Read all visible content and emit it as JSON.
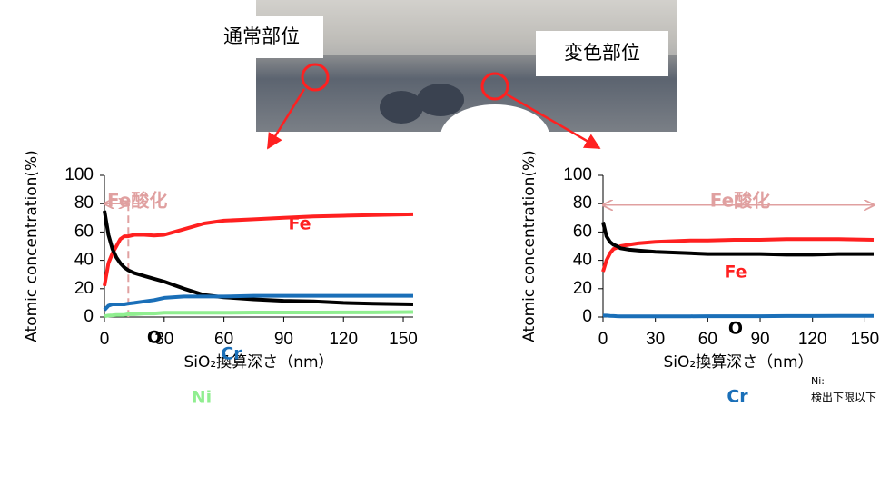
{
  "photo": {
    "labels": [
      "通常部位",
      "変色部位"
    ]
  },
  "chart_data": [
    {
      "type": "line",
      "x_label": "SiO₂換算深さ（nm）",
      "y_label": "Atomic concentration(%)",
      "xlim": [
        0,
        155
      ],
      "ylim": [
        0,
        100
      ],
      "xticks": [
        0,
        30,
        60,
        90,
        120,
        150
      ],
      "yticks": [
        0,
        20,
        40,
        60,
        80,
        100
      ],
      "x": [
        0,
        2,
        4,
        6,
        8,
        10,
        12,
        15,
        20,
        25,
        30,
        40,
        50,
        60,
        75,
        90,
        105,
        120,
        135,
        155
      ],
      "series": [
        {
          "name": "Fe",
          "color": "#ff2020",
          "values": [
            22,
            38,
            45,
            50,
            55,
            57,
            57,
            58,
            58,
            57.5,
            58,
            62,
            66,
            68,
            69,
            70,
            71,
            71.5,
            72,
            72.5
          ]
        },
        {
          "name": "O",
          "color": "#000000",
          "values": [
            75,
            58,
            48,
            42,
            38,
            35,
            33,
            31,
            29,
            27,
            25,
            20,
            15.5,
            14,
            12.5,
            11.5,
            11,
            10,
            9.5,
            9
          ]
        },
        {
          "name": "Cr",
          "color": "#1a6fb8",
          "values": [
            5,
            8,
            9,
            9,
            9,
            9,
            9.5,
            10,
            11,
            12,
            13.5,
            14.5,
            14.5,
            14.5,
            15,
            15,
            15,
            15,
            15,
            15
          ]
        },
        {
          "name": "Ni",
          "color": "#90ee90",
          "values": [
            0.5,
            1,
            1.2,
            1.5,
            1.5,
            1.5,
            2,
            2,
            2.5,
            2.5,
            3,
            3,
            3,
            3,
            3.2,
            3.2,
            3.2,
            3.3,
            3.3,
            3.5
          ]
        }
      ],
      "annotations": [
        {
          "text": "Fe酸化",
          "range": [
            0,
            12
          ]
        }
      ]
    },
    {
      "type": "line",
      "x_label": "SiO₂換算深さ（nm）",
      "y_label": "Atomic concentration(%)",
      "xlim": [
        0,
        155
      ],
      "ylim": [
        0,
        100
      ],
      "xticks": [
        0,
        30,
        60,
        90,
        120,
        150
      ],
      "yticks": [
        0,
        20,
        40,
        60,
        80,
        100
      ],
      "x": [
        0,
        2,
        4,
        6,
        8,
        10,
        15,
        20,
        30,
        40,
        50,
        60,
        75,
        90,
        105,
        120,
        135,
        155
      ],
      "series": [
        {
          "name": "Fe",
          "color": "#ff2020",
          "values": [
            32,
            40,
            45,
            48,
            49,
            50,
            51,
            52,
            53,
            53.5,
            54,
            54,
            54.5,
            54.5,
            55,
            55,
            55,
            54.5
          ]
        },
        {
          "name": "O",
          "color": "#000000",
          "values": [
            67,
            57,
            53,
            51,
            50,
            48.5,
            47.5,
            47,
            46,
            45.5,
            45,
            44.5,
            44.5,
            44.5,
            44,
            44,
            44.5,
            44.5
          ]
        },
        {
          "name": "Cr",
          "color": "#1a6fb8",
          "values": [
            1,
            1,
            0.8,
            0.7,
            0.6,
            0.5,
            0.5,
            0.5,
            0.5,
            0.5,
            0.5,
            0.6,
            0.6,
            0.6,
            0.7,
            0.7,
            0.8,
            0.8
          ]
        }
      ],
      "annotations": [
        {
          "text": "Fe酸化",
          "range": [
            0,
            155
          ]
        },
        {
          "text": "Ni:"
        },
        {
          "text": "検出下限以下"
        }
      ]
    }
  ]
}
